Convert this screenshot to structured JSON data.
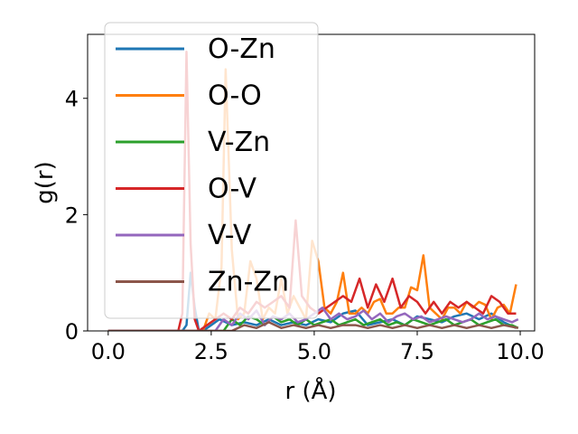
{
  "chart_data": {
    "type": "line",
    "title": "",
    "xlabel": "r (Å)",
    "ylabel": "g(r)",
    "xlim": [
      -0.5,
      10.35
    ],
    "ylim": [
      0,
      5.1
    ],
    "xticks": [
      0.0,
      2.5,
      5.0,
      7.5,
      10.0
    ],
    "xtick_labels": [
      "0.0",
      "2.5",
      "5.0",
      "7.5",
      "10.0"
    ],
    "yticks": [
      0,
      2,
      4
    ],
    "ytick_labels": [
      "0",
      "2",
      "4"
    ],
    "grid": false,
    "legend_position": "upper-left",
    "series": [
      {
        "name": "O-Zn",
        "color": "#1f77b4",
        "x": [
          0,
          1.8,
          1.9,
          2.0,
          2.1,
          2.2,
          2.3,
          2.5,
          2.7,
          3.0,
          3.3,
          3.6,
          3.9,
          4.2,
          4.5,
          4.8,
          5.1,
          5.4,
          5.7,
          6.0,
          6.3,
          6.6,
          6.9,
          7.2,
          7.5,
          7.8,
          8.1,
          8.4,
          8.7,
          9.0,
          9.3,
          9.6,
          9.9
        ],
        "y": [
          0,
          0,
          0.1,
          1.0,
          0.4,
          0,
          0,
          0.1,
          0.2,
          0.1,
          0.15,
          0.1,
          0.2,
          0.1,
          0.15,
          0.1,
          0.2,
          0.15,
          0.3,
          0.35,
          0.1,
          0.15,
          0.2,
          0.1,
          0.25,
          0.2,
          0.15,
          0.25,
          0.3,
          0.2,
          0.3,
          0.15,
          0.05
        ]
      },
      {
        "name": "O-O",
        "color": "#ff7f0e",
        "x": [
          0,
          2.3,
          2.45,
          2.6,
          2.75,
          2.85,
          3.0,
          3.15,
          3.3,
          3.45,
          3.6,
          3.75,
          3.9,
          4.05,
          4.2,
          4.35,
          4.5,
          4.65,
          4.8,
          4.95,
          5.1,
          5.25,
          5.4,
          5.55,
          5.7,
          5.85,
          6.0,
          6.15,
          6.3,
          6.45,
          6.6,
          6.75,
          6.9,
          7.05,
          7.2,
          7.35,
          7.5,
          7.65,
          7.8,
          7.95,
          8.1,
          8.25,
          8.4,
          8.55,
          8.7,
          8.85,
          9.0,
          9.15,
          9.3,
          9.45,
          9.6,
          9.75,
          9.9
        ],
        "y": [
          0,
          0,
          0.3,
          0.2,
          1.1,
          4.5,
          1.4,
          0.2,
          0.3,
          1.2,
          0.9,
          0.2,
          0.4,
          0.3,
          0.9,
          0.3,
          0.6,
          0.4,
          0.2,
          1.55,
          1.2,
          0.4,
          0.3,
          0.5,
          1.0,
          0.3,
          0.3,
          0.4,
          0.3,
          0.5,
          0.55,
          0.3,
          0.3,
          0.4,
          0.4,
          0.75,
          0.7,
          1.3,
          0.4,
          0.3,
          0.2,
          0.4,
          0.4,
          0.3,
          0.5,
          0.4,
          0.5,
          0.45,
          0.2,
          0.4,
          0.45,
          0.3,
          0.8
        ]
      },
      {
        "name": "V-Zn",
        "color": "#2ca02c",
        "x": [
          0,
          2.8,
          3.0,
          3.2,
          3.4,
          3.6,
          3.8,
          4.0,
          4.2,
          4.4,
          4.6,
          4.8,
          5.0,
          5.2,
          5.4,
          5.6,
          5.8,
          6.0,
          6.2,
          6.4,
          6.6,
          6.8,
          7.0,
          7.2,
          7.4,
          7.6,
          7.8,
          8.0,
          8.2,
          8.4,
          8.6,
          8.8,
          9.0,
          9.2,
          9.4,
          9.6,
          9.8,
          9.95
        ],
        "y": [
          0,
          0,
          0.2,
          0.1,
          0.25,
          0.2,
          0.1,
          0.25,
          0.15,
          0.2,
          0.1,
          0.2,
          0.1,
          0.15,
          0.2,
          0.1,
          0.15,
          0.2,
          0.1,
          0.15,
          0.2,
          0.1,
          0.15,
          0.1,
          0.2,
          0.15,
          0.1,
          0.15,
          0.2,
          0.1,
          0.15,
          0.2,
          0.1,
          0.15,
          0.2,
          0.1,
          0.1,
          0.05
        ]
      },
      {
        "name": "O-V",
        "color": "#d62728",
        "x": [
          0,
          1.7,
          1.8,
          1.9,
          2.0,
          2.1,
          2.2,
          2.4,
          2.6,
          2.8,
          3.0,
          3.2,
          3.4,
          3.6,
          3.8,
          4.0,
          4.2,
          4.4,
          4.55,
          4.7,
          4.9,
          5.1,
          5.3,
          5.5,
          5.7,
          5.9,
          6.1,
          6.3,
          6.5,
          6.7,
          6.9,
          7.1,
          7.3,
          7.5,
          7.7,
          7.9,
          8.1,
          8.3,
          8.5,
          8.7,
          8.9,
          9.1,
          9.3,
          9.5,
          9.7,
          9.9
        ],
        "y": [
          0,
          0,
          0.3,
          4.8,
          1.5,
          0.2,
          0,
          0.1,
          0.2,
          0.3,
          0.2,
          0.4,
          0.3,
          0.5,
          0.4,
          0.5,
          0.6,
          0.4,
          1.9,
          0.6,
          0.4,
          0.3,
          0.4,
          0.5,
          0.6,
          0.5,
          0.9,
          0.4,
          0.8,
          0.5,
          0.9,
          0.4,
          0.6,
          0.5,
          0.3,
          0.5,
          0.3,
          0.5,
          0.4,
          0.5,
          0.4,
          0.3,
          0.6,
          0.5,
          0.3,
          0.3
        ]
      },
      {
        "name": "V-V",
        "color": "#9467bd",
        "x": [
          0,
          2.6,
          2.8,
          3.0,
          3.2,
          3.4,
          3.6,
          3.8,
          4.0,
          4.2,
          4.4,
          4.6,
          4.8,
          5.0,
          5.2,
          5.4,
          5.6,
          5.8,
          6.0,
          6.2,
          6.4,
          6.6,
          6.8,
          7.0,
          7.2,
          7.4,
          7.6,
          7.8,
          8.0,
          8.2,
          8.4,
          8.6,
          8.8,
          9.0,
          9.2,
          9.4,
          9.6,
          9.8,
          9.95
        ],
        "y": [
          0,
          0,
          0.2,
          0.1,
          0.3,
          0.2,
          0.35,
          0.1,
          0.25,
          0.2,
          0.3,
          0.15,
          0.2,
          0.3,
          0.4,
          0.2,
          0.3,
          0.2,
          0.25,
          0.35,
          0.2,
          0.3,
          0.15,
          0.25,
          0.3,
          0.2,
          0.25,
          0.15,
          0.2,
          0.25,
          0.2,
          0.15,
          0.2,
          0.3,
          0.2,
          0.25,
          0.2,
          0.15,
          0.2
        ]
      },
      {
        "name": "Zn-Zn",
        "color": "#8c564b",
        "x": [
          0,
          3.0,
          3.3,
          3.6,
          3.9,
          4.2,
          4.5,
          4.8,
          5.1,
          5.4,
          5.7,
          6.0,
          6.3,
          6.6,
          6.9,
          7.2,
          7.5,
          7.8,
          8.1,
          8.4,
          8.7,
          9.0,
          9.3,
          9.6,
          9.95
        ],
        "y": [
          0,
          0,
          0.1,
          0.05,
          0.15,
          0.05,
          0.1,
          0.05,
          0.1,
          0.05,
          0.1,
          0.1,
          0.05,
          0.1,
          0.05,
          0.1,
          0.05,
          0.1,
          0.05,
          0.1,
          0.05,
          0.1,
          0.05,
          0.1,
          0.05
        ]
      }
    ]
  }
}
